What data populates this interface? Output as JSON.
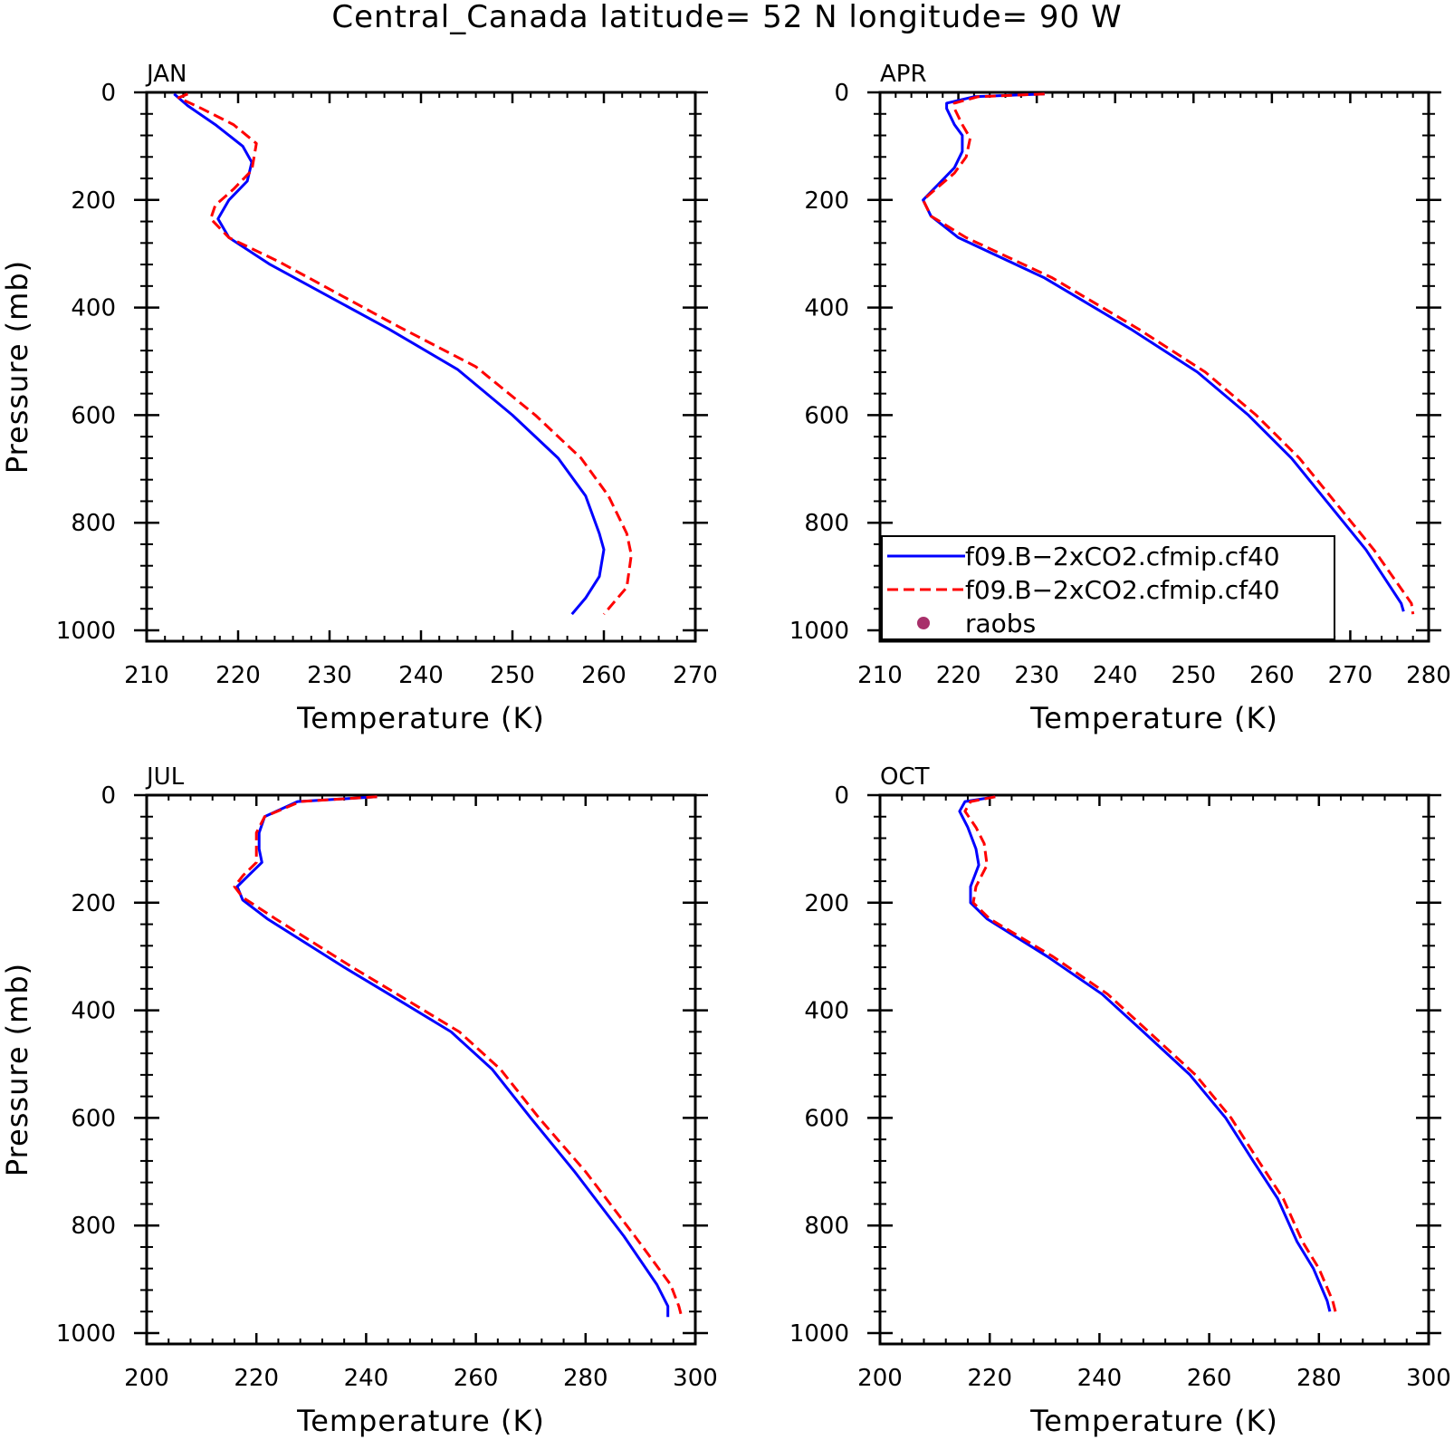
{
  "title": "Central_Canada  latitude= 52 N longitude= 90 W",
  "legend": {
    "entries": [
      {
        "label": "f09.B−2xCO2.cfmip.cf40",
        "color": "#0000ff",
        "style": "solid"
      },
      {
        "label": "f09.B−2xCO2.cfmip.cf40",
        "color": "#ff0000",
        "style": "dashed"
      },
      {
        "label": "raobs",
        "color": "#a8306a",
        "style": "marker"
      }
    ]
  },
  "chart_data": [
    {
      "type": "line",
      "panel_label": "JAN",
      "xlabel": "Temperature (K)",
      "ylabel": "Pressure (mb)",
      "xlim": [
        210,
        270
      ],
      "ylim": [
        1000,
        0
      ],
      "xticks": [
        210,
        220,
        230,
        240,
        250,
        260,
        270
      ],
      "yticks": [
        0,
        200,
        400,
        600,
        800,
        1000
      ],
      "series": [
        {
          "color": "#0000ff",
          "style": "solid",
          "points": [
            [
              213.0,
              3
            ],
            [
              214.5,
              25
            ],
            [
              217.5,
              60
            ],
            [
              220.5,
              100
            ],
            [
              221.5,
              130
            ],
            [
              221.0,
              165
            ],
            [
              219.0,
              200
            ],
            [
              217.8,
              235
            ],
            [
              219.0,
              270
            ],
            [
              223.5,
              320
            ],
            [
              236.5,
              440
            ],
            [
              244.0,
              515
            ],
            [
              250.0,
              600
            ],
            [
              255.0,
              680
            ],
            [
              258.0,
              750
            ],
            [
              259.5,
              820
            ],
            [
              260.0,
              850
            ],
            [
              259.5,
              900
            ],
            [
              258.0,
              940
            ],
            [
              256.5,
              970
            ]
          ]
        },
        {
          "color": "#ff0000",
          "style": "dashed",
          "points": [
            [
              214.5,
              3
            ],
            [
              213.5,
              10
            ],
            [
              216.0,
              30
            ],
            [
              219.5,
              60
            ],
            [
              222.0,
              95
            ],
            [
              221.5,
              145
            ],
            [
              219.5,
              180
            ],
            [
              217.5,
              210
            ],
            [
              217.0,
              235
            ],
            [
              219.0,
              270
            ],
            [
              224.5,
              315
            ],
            [
              237.5,
              435
            ],
            [
              246.0,
              510
            ],
            [
              252.5,
              600
            ],
            [
              257.5,
              680
            ],
            [
              260.5,
              750
            ],
            [
              262.5,
              820
            ],
            [
              263.0,
              860
            ],
            [
              262.5,
              920
            ],
            [
              261.0,
              950
            ],
            [
              260.0,
              970
            ]
          ]
        }
      ]
    },
    {
      "type": "line",
      "panel_label": "APR",
      "xlabel": "Temperature (K)",
      "ylabel": "",
      "xlim": [
        210,
        280
      ],
      "ylim": [
        1000,
        0
      ],
      "xticks": [
        210,
        220,
        230,
        240,
        250,
        260,
        270,
        280
      ],
      "yticks": [
        0,
        200,
        400,
        600,
        800,
        1000
      ],
      "series": [
        {
          "color": "#0000ff",
          "style": "solid",
          "points": [
            [
              231.0,
              3
            ],
            [
              222.0,
              8
            ],
            [
              218.5,
              20
            ],
            [
              218.5,
              30
            ],
            [
              219.5,
              60
            ],
            [
              220.5,
              80
            ],
            [
              220.5,
              110
            ],
            [
              219.5,
              140
            ],
            [
              217.5,
              170
            ],
            [
              215.5,
              200
            ],
            [
              216.5,
              230
            ],
            [
              220.0,
              270
            ],
            [
              231.0,
              345
            ],
            [
              242.0,
              440
            ],
            [
              250.5,
              520
            ],
            [
              257.0,
              600
            ],
            [
              262.5,
              680
            ],
            [
              272.0,
              850
            ],
            [
              276.5,
              950
            ],
            [
              276.8,
              965
            ]
          ]
        },
        {
          "color": "#ff0000",
          "style": "dashed",
          "points": [
            [
              231.0,
              3
            ],
            [
              222.5,
              8
            ],
            [
              219.5,
              20
            ],
            [
              219.5,
              30
            ],
            [
              220.5,
              60
            ],
            [
              221.5,
              85
            ],
            [
              221.0,
              120
            ],
            [
              219.5,
              150
            ],
            [
              217.5,
              175
            ],
            [
              215.5,
              200
            ],
            [
              216.5,
              230
            ],
            [
              221.0,
              270
            ],
            [
              232.0,
              345
            ],
            [
              243.0,
              440
            ],
            [
              251.5,
              520
            ],
            [
              258.0,
              600
            ],
            [
              263.5,
              680
            ],
            [
              273.0,
              850
            ],
            [
              277.8,
              950
            ],
            [
              278.0,
              970
            ]
          ]
        }
      ]
    },
    {
      "type": "line",
      "panel_label": "JUL",
      "xlabel": "Temperature (K)",
      "ylabel": "Pressure (mb)",
      "xlim": [
        200,
        300
      ],
      "ylim": [
        1000,
        0
      ],
      "xticks": [
        200,
        220,
        240,
        260,
        280,
        300
      ],
      "yticks": [
        0,
        200,
        400,
        600,
        800,
        1000
      ],
      "series": [
        {
          "color": "#0000ff",
          "style": "solid",
          "points": [
            [
              242.0,
              3
            ],
            [
              227.5,
              12
            ],
            [
              221.5,
              40
            ],
            [
              220.5,
              70
            ],
            [
              220.5,
              100
            ],
            [
              221.0,
              125
            ],
            [
              218.5,
              150
            ],
            [
              216.5,
              170
            ],
            [
              217.5,
              195
            ],
            [
              222.0,
              230
            ],
            [
              236.0,
              320
            ],
            [
              245.0,
              375
            ],
            [
              255.5,
              440
            ],
            [
              263.0,
              510
            ],
            [
              270.0,
              600
            ],
            [
              278.0,
              700
            ],
            [
              287.0,
              820
            ],
            [
              293.0,
              910
            ],
            [
              295.0,
              950
            ],
            [
              295.0,
              970
            ]
          ]
        },
        {
          "color": "#ff0000",
          "style": "dashed",
          "points": [
            [
              242.0,
              3
            ],
            [
              228.0,
              12
            ],
            [
              221.5,
              40
            ],
            [
              220.0,
              70
            ],
            [
              220.0,
              100
            ],
            [
              220.0,
              125
            ],
            [
              217.5,
              150
            ],
            [
              216.0,
              170
            ],
            [
              217.5,
              190
            ],
            [
              223.5,
              230
            ],
            [
              237.5,
              320
            ],
            [
              246.5,
              375
            ],
            [
              257.0,
              440
            ],
            [
              264.5,
              510
            ],
            [
              271.5,
              600
            ],
            [
              280.0,
              700
            ],
            [
              289.0,
              820
            ],
            [
              295.5,
              910
            ],
            [
              297.0,
              950
            ],
            [
              297.5,
              970
            ]
          ]
        }
      ]
    },
    {
      "type": "line",
      "panel_label": "OCT",
      "xlabel": "Temperature (K)",
      "ylabel": "",
      "xlim": [
        200,
        300
      ],
      "ylim": [
        1000,
        0
      ],
      "xticks": [
        200,
        220,
        240,
        260,
        280,
        300
      ],
      "yticks": [
        0,
        200,
        400,
        600,
        800,
        1000
      ],
      "series": [
        {
          "color": "#0000ff",
          "style": "solid",
          "points": [
            [
              221.0,
              3
            ],
            [
              215.5,
              12
            ],
            [
              214.5,
              30
            ],
            [
              216.0,
              60
            ],
            [
              217.5,
              100
            ],
            [
              218.0,
              130
            ],
            [
              216.5,
              170
            ],
            [
              216.5,
              200
            ],
            [
              219.5,
              230
            ],
            [
              230.5,
              300
            ],
            [
              240.5,
              370
            ],
            [
              248.0,
              440
            ],
            [
              256.5,
              520
            ],
            [
              263.0,
              600
            ],
            [
              268.0,
              680
            ],
            [
              272.5,
              750
            ],
            [
              276.0,
              830
            ],
            [
              279.0,
              880
            ],
            [
              281.5,
              940
            ],
            [
              282.0,
              960
            ]
          ]
        },
        {
          "color": "#ff0000",
          "style": "dashed",
          "points": [
            [
              221.0,
              3
            ],
            [
              216.5,
              12
            ],
            [
              215.5,
              30
            ],
            [
              217.5,
              60
            ],
            [
              219.0,
              90
            ],
            [
              219.5,
              130
            ],
            [
              217.5,
              170
            ],
            [
              217.0,
              200
            ],
            [
              220.0,
              230
            ],
            [
              231.5,
              300
            ],
            [
              241.5,
              370
            ],
            [
              249.0,
              440
            ],
            [
              257.5,
              520
            ],
            [
              264.0,
              600
            ],
            [
              269.0,
              680
            ],
            [
              273.5,
              750
            ],
            [
              277.0,
              830
            ],
            [
              280.0,
              880
            ],
            [
              282.5,
              940
            ],
            [
              283.0,
              960
            ]
          ]
        }
      ]
    }
  ]
}
